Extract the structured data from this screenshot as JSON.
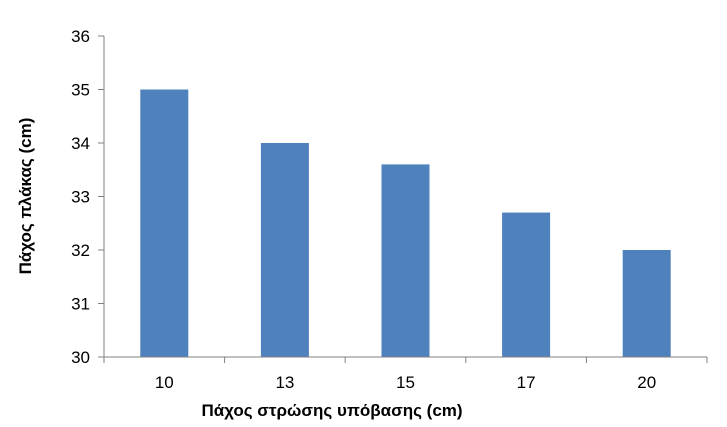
{
  "chart_data": {
    "type": "bar",
    "title": "",
    "xlabel": "Πάχος στρώσης υπόβασης (cm)",
    "ylabel": "Πάχος πλάκας (cm)",
    "categories": [
      "10",
      "13",
      "15",
      "17",
      "20"
    ],
    "values": [
      35.0,
      34.0,
      33.6,
      32.7,
      32.0
    ],
    "ylim": [
      30,
      36
    ],
    "yticks": [
      "30",
      "31",
      "32",
      "33",
      "34",
      "35",
      "36"
    ],
    "grid": false,
    "bar_color": "#4f81bd",
    "axis_color": "#808080"
  }
}
